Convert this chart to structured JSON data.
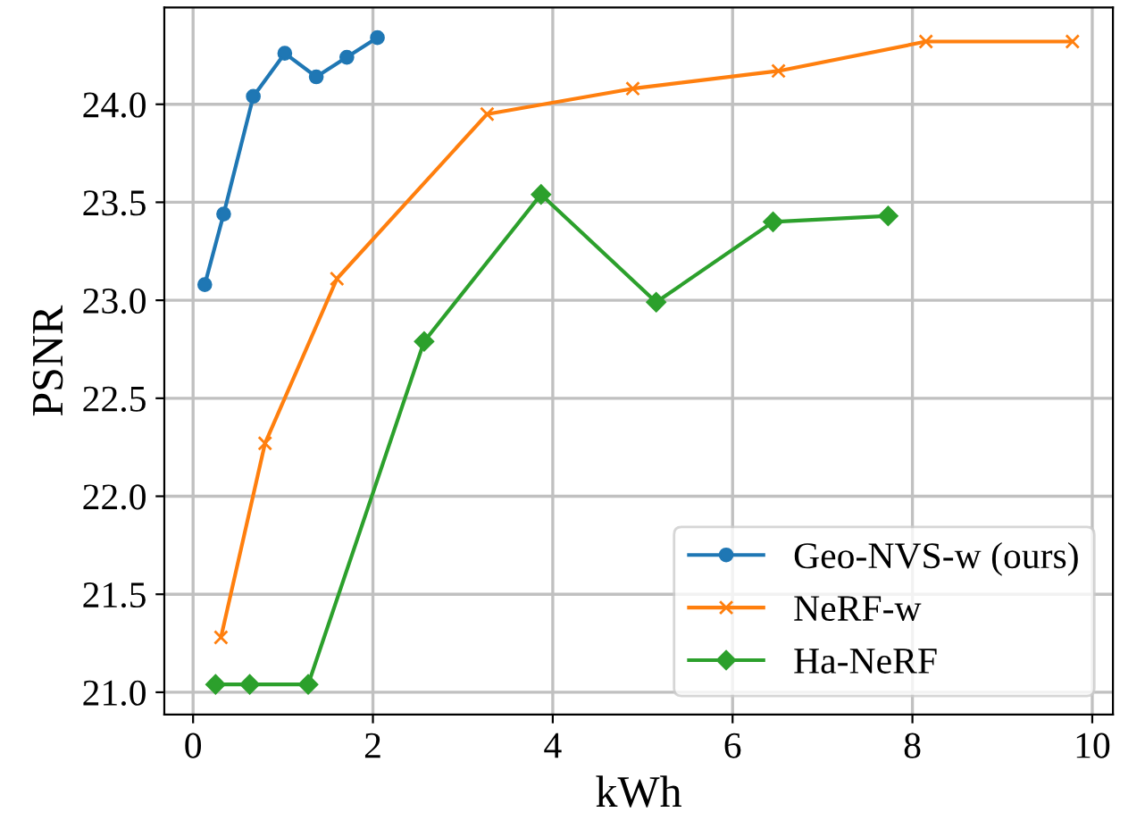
{
  "chart_data": {
    "type": "line",
    "xlabel": "kWh",
    "ylabel": "PSNR",
    "xlim": [
      -0.32,
      10.23
    ],
    "ylim": [
      20.886,
      24.494
    ],
    "xticks": [
      0,
      2,
      4,
      6,
      8,
      10
    ],
    "yticks": [
      {
        "value": 21.0,
        "label": "21.0"
      },
      {
        "value": 21.5,
        "label": "21.5"
      },
      {
        "value": 22.0,
        "label": "22.0"
      },
      {
        "value": 22.5,
        "label": "22.5"
      },
      {
        "value": 23.0,
        "label": "23.0"
      },
      {
        "value": 23.5,
        "label": "23.5"
      },
      {
        "value": 24.0,
        "label": "24.0"
      }
    ],
    "grid": true,
    "legend": "bottom right",
    "series": [
      {
        "name": "Geo-NVS-w (ours)",
        "color": "#1f77b4",
        "marker": "circle",
        "x": [
          0.13,
          0.34,
          0.67,
          1.02,
          1.37,
          1.71,
          2.05
        ],
        "values": [
          23.08,
          23.44,
          24.04,
          24.26,
          24.14,
          24.24,
          24.34
        ]
      },
      {
        "name": "NeRF-w",
        "color": "#ff7f0e",
        "marker": "cross",
        "x": [
          0.31,
          0.8,
          1.6,
          3.27,
          4.89,
          6.51,
          8.15,
          9.78
        ],
        "values": [
          21.28,
          22.27,
          23.11,
          23.95,
          24.08,
          24.17,
          24.32,
          24.32
        ]
      },
      {
        "name": "Ha-NeRF",
        "color": "#2ca02c",
        "marker": "diamond",
        "x": [
          0.25,
          0.63,
          1.28,
          2.57,
          3.87,
          5.15,
          6.45,
          7.73
        ],
        "values": [
          21.04,
          21.04,
          21.04,
          22.79,
          23.54,
          22.99,
          23.4,
          23.43
        ]
      }
    ]
  }
}
